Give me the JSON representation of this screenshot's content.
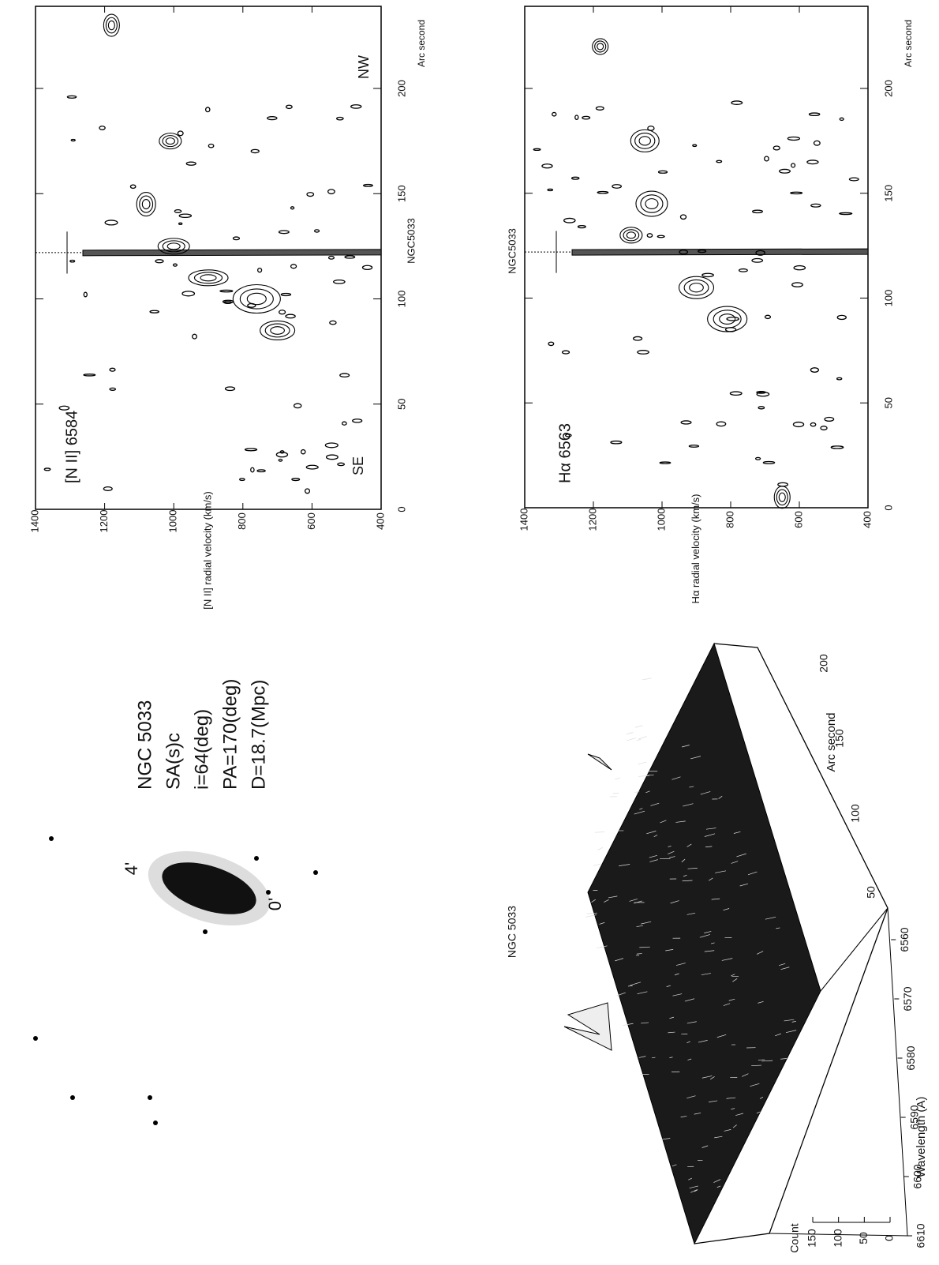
{
  "nii_panel": {
    "title": "NGC5033",
    "line_label": "[N II] 6584",
    "x_label": "Arc second",
    "y_label": "[N II] radial velocity (km/s)",
    "xticks": [
      0,
      50,
      100,
      150,
      200
    ],
    "yticks": [
      1400,
      1200,
      1000,
      800,
      600,
      400
    ],
    "annotations": [
      "SE",
      "NW"
    ]
  },
  "ha_panel": {
    "title": "NGC5033",
    "line_label": "Hα 6563",
    "x_label": "Arc second",
    "y_label": "Hα radial velocity (km/s)",
    "xticks": [
      0,
      50,
      100,
      150,
      200
    ],
    "yticks": [
      1400,
      1200,
      1000,
      800,
      600,
      400
    ]
  },
  "galaxy": {
    "lines": [
      "NGC 5033",
      "SA(s)c",
      "i=64(deg)",
      "PA=170(deg)",
      "D=18.7(Mpc)"
    ],
    "scale_labels": [
      "4'",
      "0'"
    ]
  },
  "surface": {
    "title": "NGC 5033",
    "x_label": "Arc second",
    "xticks": [
      50,
      100,
      150,
      200
    ],
    "wavelength_label": "Wavelength (A)",
    "wavelength_ticks": [
      6560,
      6570,
      6580,
      6590,
      6600,
      6610
    ],
    "count_label": "Count",
    "count_ticks": [
      0,
      50,
      100,
      150
    ]
  }
}
